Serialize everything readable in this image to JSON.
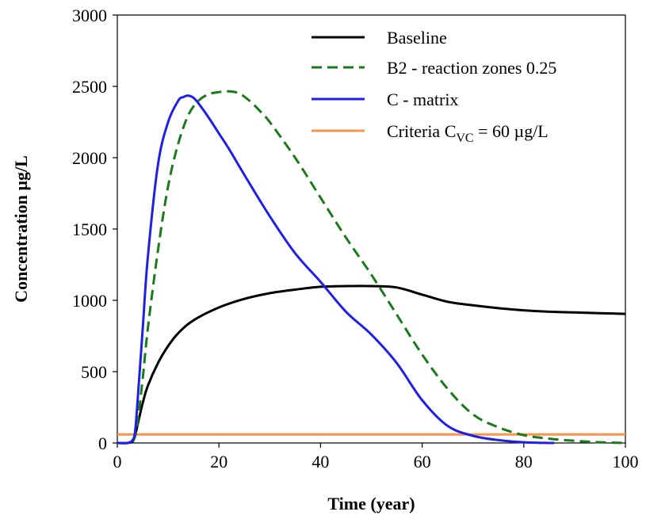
{
  "chart_data": {
    "type": "line",
    "title": "",
    "xlabel": "Time (year)",
    "ylabel": "Concentration µg/L",
    "xlim": [
      0,
      100
    ],
    "ylim": [
      0,
      3000
    ],
    "xticks": [
      0,
      20,
      40,
      60,
      80,
      100
    ],
    "yticks": [
      0,
      500,
      1000,
      1500,
      2000,
      2500,
      3000
    ],
    "grid": false,
    "legend_position": "top-right",
    "series": [
      {
        "name": "Baseline",
        "color": "#000000",
        "dash": "solid",
        "x": [
          0,
          2,
          3,
          3.5,
          4,
          5,
          6,
          8,
          10,
          12,
          15,
          20,
          25,
          30,
          35,
          40,
          45,
          50,
          55,
          60,
          65,
          70,
          75,
          80,
          85,
          90,
          95,
          100
        ],
        "y": [
          0,
          0,
          10,
          50,
          130,
          280,
          400,
          560,
          680,
          770,
          860,
          950,
          1010,
          1050,
          1075,
          1095,
          1100,
          1100,
          1090,
          1040,
          990,
          965,
          945,
          930,
          920,
          915,
          910,
          905
        ]
      },
      {
        "name": "B2 - reaction zones 0.25",
        "color": "#1a7a1a",
        "dash": "dashed",
        "x": [
          0,
          2,
          3,
          3.5,
          4,
          5,
          6,
          8,
          10,
          12,
          14,
          16,
          18,
          20,
          22,
          24,
          26,
          28,
          30,
          35,
          40,
          45,
          50,
          55,
          60,
          65,
          70,
          75,
          80,
          85,
          90,
          95,
          100
        ],
        "y": [
          0,
          0,
          10,
          50,
          150,
          450,
          800,
          1350,
          1800,
          2100,
          2300,
          2400,
          2445,
          2460,
          2465,
          2450,
          2400,
          2330,
          2250,
          2000,
          1720,
          1440,
          1180,
          900,
          620,
          380,
          200,
          110,
          55,
          30,
          15,
          5,
          0
        ]
      },
      {
        "name": "C - matrix",
        "color": "#1f1fe8",
        "dash": "solid",
        "x": [
          0,
          2,
          3,
          3.5,
          4,
          5,
          6,
          8,
          10,
          12,
          13,
          14,
          15,
          16,
          18,
          20,
          22,
          25,
          30,
          35,
          40,
          45,
          50,
          55,
          60,
          65,
          70,
          75,
          80,
          85,
          86
        ],
        "y": [
          0,
          0,
          20,
          80,
          300,
          800,
          1300,
          1950,
          2250,
          2400,
          2425,
          2435,
          2420,
          2380,
          2280,
          2170,
          2060,
          1880,
          1590,
          1330,
          1130,
          920,
          760,
          560,
          300,
          120,
          50,
          20,
          5,
          0,
          0
        ]
      },
      {
        "name": "Criteria C_VC = 60 µg/L",
        "color": "#f7964b",
        "dash": "solid",
        "x": [
          0,
          100
        ],
        "y": [
          60,
          60
        ]
      }
    ],
    "legend": [
      {
        "label": "Baseline"
      },
      {
        "label": "B2 - reaction zones 0.25"
      },
      {
        "label": "C - matrix"
      },
      {
        "label_main": "Criteria C",
        "label_sub": "VC",
        "label_rest": " = 60 µg/L"
      }
    ]
  }
}
